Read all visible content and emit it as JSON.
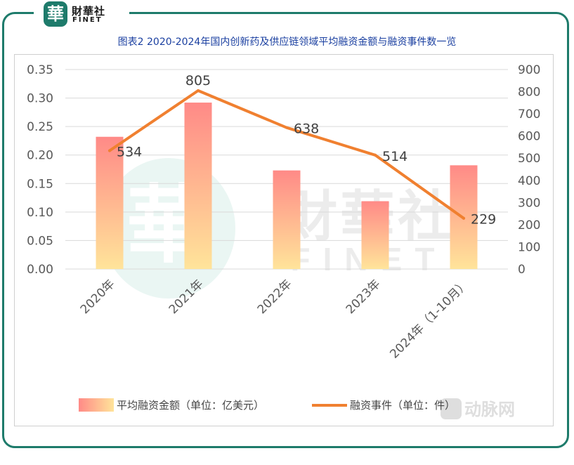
{
  "brand": {
    "seal_glyph": "華",
    "name_cn": "財華社",
    "name_en": "FINET",
    "watermark_cn": "財華社",
    "watermark_en": "FINET",
    "corner_watermark": "动脉网"
  },
  "chart_data": {
    "type": "bar",
    "title": "图表2 2020-2024年国内创新药及供应链领域平均融资金额与融资事件数一览",
    "categories": [
      "2020年",
      "2021年",
      "2022年",
      "2023年",
      "2024年（1-10月）"
    ],
    "series": [
      {
        "name": "平均融资金额（单位：亿美元）",
        "type": "bar",
        "axis": "left",
        "values": [
          0.232,
          0.292,
          0.173,
          0.119,
          0.182
        ]
      },
      {
        "name": "融资事件（单位：件）",
        "type": "line",
        "axis": "right",
        "values": [
          534,
          805,
          638,
          514,
          229
        ]
      }
    ],
    "y_left": {
      "min": 0,
      "max": 0.35,
      "ticks": [
        "0.00",
        "0.05",
        "0.10",
        "0.15",
        "0.20",
        "0.25",
        "0.30",
        "0.35"
      ]
    },
    "y_right": {
      "min": 0,
      "max": 900,
      "ticks": [
        "0",
        "100",
        "200",
        "300",
        "400",
        "500",
        "600",
        "700",
        "800",
        "900"
      ]
    },
    "line_labels": [
      "534",
      "805",
      "638",
      "514",
      "229"
    ],
    "grid": true,
    "legend_position": "bottom",
    "colors": {
      "bar_top": "#ff8a87",
      "bar_bottom": "#ffe49a",
      "line": "#f08030",
      "grid": "#d9d9d9",
      "title": "#1a3fa0",
      "frame": "#1e7b6b"
    }
  }
}
